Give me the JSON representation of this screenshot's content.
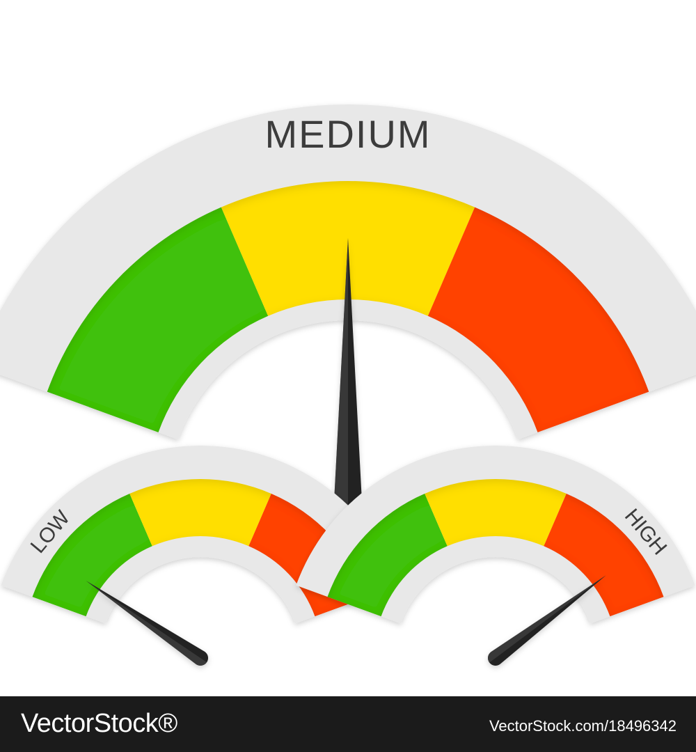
{
  "gauges": [
    {
      "id": "medium",
      "label": "MEDIUM",
      "level": 0.5,
      "zones": [
        {
          "name": "green",
          "color": "#3fc10a"
        },
        {
          "name": "yellow",
          "color": "#ffdf00"
        },
        {
          "name": "red",
          "color": "#ff4200"
        }
      ],
      "frame_color": "#e8e8e8",
      "needle_color": "#222222"
    },
    {
      "id": "low",
      "label": "LOW",
      "level": 0.1,
      "zones": [
        {
          "name": "green",
          "color": "#3fc10a"
        },
        {
          "name": "yellow",
          "color": "#ffdf00"
        },
        {
          "name": "red",
          "color": "#ff4200"
        }
      ],
      "frame_color": "#e8e8e8",
      "needle_color": "#222222"
    },
    {
      "id": "high",
      "label": "HIGH",
      "level": 0.88,
      "zones": [
        {
          "name": "green",
          "color": "#3fc10a"
        },
        {
          "name": "yellow",
          "color": "#ffdf00"
        },
        {
          "name": "red",
          "color": "#ff4200"
        }
      ],
      "frame_color": "#e8e8e8",
      "needle_color": "#222222"
    }
  ],
  "footer": {
    "brand": "VectorStock®",
    "image_id": "VectorStock.com/18496342"
  }
}
